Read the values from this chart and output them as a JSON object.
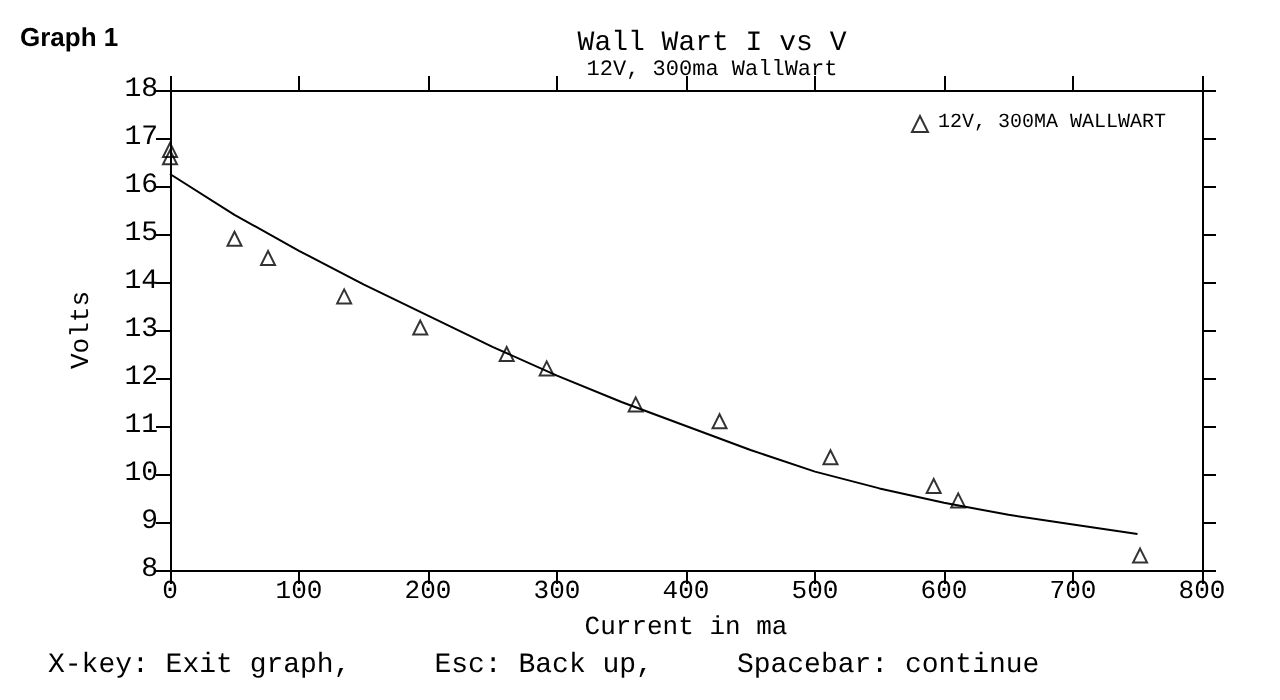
{
  "chart_data": {
    "type": "scatter",
    "title": "Wall Wart I vs V",
    "subtitle": "12V, 300ma WallWart",
    "xlabel": "Current in ma",
    "ylabel": "Volts",
    "annotations": [
      "Graph 1",
      "X-key: Exit graph,     Esc: Back up,     Spacebar: continue"
    ],
    "xlim": [
      0,
      800
    ],
    "xticks": [
      0,
      100,
      200,
      300,
      400,
      500,
      600,
      700,
      800
    ],
    "ylim": [
      8,
      18
    ],
    "yticks": [
      8,
      9,
      10,
      11,
      12,
      13,
      14,
      15,
      16,
      17,
      18
    ],
    "grid": false,
    "legend": "top right",
    "series": [
      {
        "name": "12V, 300MA WALLWART",
        "marker": "triangle",
        "color": "#000000",
        "x": [
          0,
          0,
          50,
          76,
          135,
          194,
          261,
          292,
          361,
          426,
          512,
          592,
          611,
          752
        ],
        "values": [
          16.75,
          16.6,
          14.9,
          14.5,
          13.7,
          13.05,
          12.5,
          12.2,
          11.45,
          11.1,
          10.35,
          9.75,
          9.45,
          8.3
        ]
      },
      {
        "type": "line",
        "marker": "none",
        "line_style": "solid",
        "color": "#000000",
        "x": [
          0,
          50,
          100,
          150,
          200,
          250,
          300,
          350,
          400,
          450,
          500,
          550,
          600,
          650,
          700,
          750
        ],
        "values": [
          16.25,
          15.4,
          14.65,
          13.95,
          13.3,
          12.65,
          12.05,
          11.5,
          11.0,
          10.5,
          10.05,
          9.7,
          9.4,
          9.15,
          8.95,
          8.75
        ]
      }
    ]
  }
}
